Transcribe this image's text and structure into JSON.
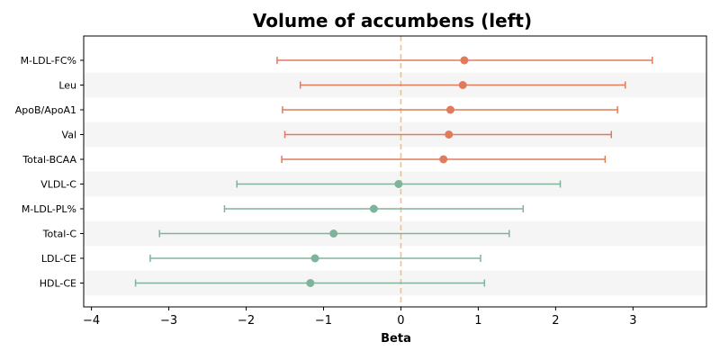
{
  "chart_data": {
    "type": "forest",
    "title": "Volume of accumbens (left)",
    "xlabel": "Beta",
    "ylabel": "",
    "xlim": [
      -4.1,
      3.95
    ],
    "xticks": [
      -4,
      -3,
      -2,
      -1,
      0,
      1,
      2,
      3
    ],
    "xtick_labels": [
      "−4",
      "−3",
      "−2",
      "−1",
      "0",
      "1",
      "2",
      "3"
    ],
    "reference_line": 0,
    "colors": {
      "positive": "#e07b5b",
      "negative": "#80b39b",
      "reference": "#f0c27b",
      "stripe": "#f5f5f5"
    },
    "rows": [
      {
        "label": "M-LDL-FC%",
        "beta": 0.82,
        "lower": -1.6,
        "upper": 3.25,
        "color": "#e07b5b"
      },
      {
        "label": "Leu",
        "beta": 0.8,
        "lower": -1.3,
        "upper": 2.9,
        "color": "#e07b5b"
      },
      {
        "label": "ApoB/ApoA1",
        "beta": 0.64,
        "lower": -1.53,
        "upper": 2.8,
        "color": "#e07b5b"
      },
      {
        "label": "Val",
        "beta": 0.62,
        "lower": -1.5,
        "upper": 2.72,
        "color": "#e07b5b"
      },
      {
        "label": "Total-BCAA",
        "beta": 0.55,
        "lower": -1.54,
        "upper": 2.64,
        "color": "#e07b5b"
      },
      {
        "label": "VLDL-C",
        "beta": -0.03,
        "lower": -2.12,
        "upper": 2.06,
        "color": "#80b39b"
      },
      {
        "label": "M-LDL-PL%",
        "beta": -0.35,
        "lower": -2.28,
        "upper": 1.58,
        "color": "#80b39b"
      },
      {
        "label": "Total-C",
        "beta": -0.87,
        "lower": -3.12,
        "upper": 1.4,
        "color": "#80b39b"
      },
      {
        "label": "LDL-CE",
        "beta": -1.11,
        "lower": -3.24,
        "upper": 1.03,
        "color": "#80b39b"
      },
      {
        "label": "HDL-CE",
        "beta": -1.17,
        "lower": -3.43,
        "upper": 1.08,
        "color": "#80b39b"
      }
    ]
  }
}
